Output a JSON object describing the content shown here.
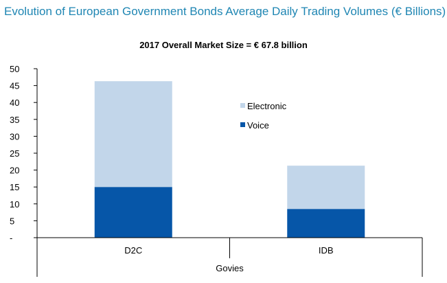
{
  "page_title": "Evolution of European Government Bonds Average Daily Trading Volumes (€ Billions)",
  "colors": {
    "electronic": "#c2d6ea",
    "voice": "#0656a8",
    "axis": "#000000",
    "title": "#1f86b3"
  },
  "chart_data": {
    "type": "bar",
    "stacked": true,
    "title": "2017 Overall Market Size = € 67.8 billion",
    "categories": [
      "D2C",
      "IDB"
    ],
    "group_label": "Govies",
    "series": [
      {
        "name": "Voice",
        "values": [
          15.0,
          8.5
        ]
      },
      {
        "name": "Electronic",
        "values": [
          31.3,
          12.8
        ]
      }
    ],
    "ylim": [
      0,
      50
    ],
    "yticks": [
      "-",
      "5",
      "10",
      "15",
      "20",
      "25",
      "30",
      "35",
      "40",
      "45",
      "50"
    ],
    "grid": false,
    "legend_position": "center-right"
  }
}
